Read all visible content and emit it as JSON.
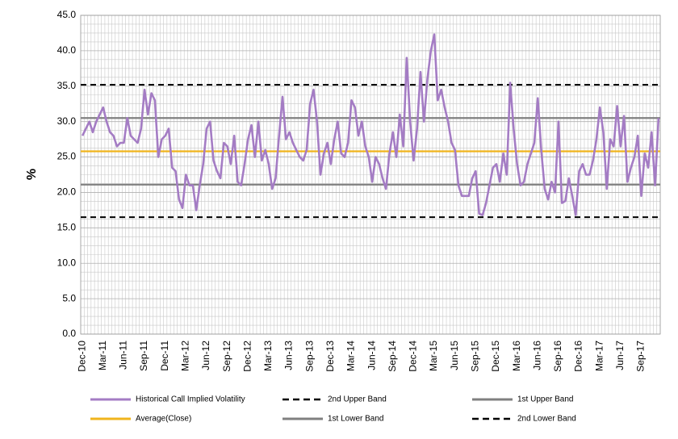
{
  "chart_data": {
    "type": "line",
    "ylabel": "%",
    "ylim": [
      0,
      45
    ],
    "yticks": [
      {
        "value": 0,
        "label": "0.0"
      },
      {
        "value": 5,
        "label": "5.0"
      },
      {
        "value": 10,
        "label": "10.0"
      },
      {
        "value": 15,
        "label": "15.0"
      },
      {
        "value": 20,
        "label": "20.0"
      },
      {
        "value": 25,
        "label": "25.0"
      },
      {
        "value": 30,
        "label": "30.0"
      },
      {
        "value": 35,
        "label": "35.0"
      },
      {
        "value": 40,
        "label": "40.0"
      },
      {
        "value": 45,
        "label": "45.0"
      }
    ],
    "grid": true,
    "categories": [
      "Dec-10",
      null,
      null,
      null,
      null,
      null,
      "Mar-11",
      null,
      null,
      null,
      null,
      null,
      "Jun-11",
      null,
      null,
      null,
      null,
      null,
      "Sep-11",
      null,
      null,
      null,
      null,
      null,
      "Dec-11",
      null,
      null,
      null,
      null,
      null,
      "Mar-12",
      null,
      null,
      null,
      null,
      null,
      "Jun-12",
      null,
      null,
      null,
      null,
      null,
      "Sep-12",
      null,
      null,
      null,
      null,
      null,
      "Dec-12",
      null,
      null,
      null,
      null,
      null,
      "Mar-13",
      null,
      null,
      null,
      null,
      null,
      "Jun-13",
      null,
      null,
      null,
      null,
      null,
      "Sep-13",
      null,
      null,
      null,
      null,
      null,
      "Dec-13",
      null,
      null,
      null,
      null,
      null,
      "Mar-14",
      null,
      null,
      null,
      null,
      null,
      "Jun-14",
      null,
      null,
      null,
      null,
      null,
      "Sep-14",
      null,
      null,
      null,
      null,
      null,
      "Dec-14",
      null,
      null,
      null,
      null,
      null,
      "Mar-15",
      null,
      null,
      null,
      null,
      null,
      "Jun-15",
      null,
      null,
      null,
      null,
      null,
      "Sep-15",
      null,
      null,
      null,
      null,
      null,
      "Dec-15",
      null,
      null,
      null,
      null,
      null,
      "Mar-16",
      null,
      null,
      null,
      null,
      null,
      "Jun-16",
      null,
      null,
      null,
      null,
      null,
      "Sep-16",
      null,
      null,
      null,
      null,
      null,
      "Dec-16",
      null,
      null,
      null,
      null,
      null,
      "Mar-17",
      null,
      null,
      null,
      null,
      null,
      "Jun-17",
      null,
      null,
      null,
      null,
      null,
      "Sep-17",
      null,
      null,
      null,
      null,
      null
    ],
    "series": [
      {
        "name": "Historical Call Implied Volatility",
        "color": "#a47cc4",
        "values": [
          28,
          29,
          30,
          28.5,
          30,
          31,
          32,
          30,
          28.5,
          28,
          26.5,
          27,
          27,
          30.5,
          28,
          27.5,
          27,
          29,
          34.5,
          31,
          34,
          33,
          25,
          27.5,
          28,
          29,
          23.5,
          23,
          19,
          17.8,
          22.5,
          21,
          21,
          17.5,
          21,
          24,
          29,
          30,
          24.5,
          23,
          22,
          27,
          26.5,
          24,
          28,
          21.5,
          21,
          24,
          27.5,
          29.5,
          25,
          30,
          24.5,
          26,
          24,
          20.5,
          22,
          28,
          33.5,
          27.5,
          28.5,
          27,
          26,
          25,
          24.5,
          26,
          32.5,
          34.5,
          30,
          22.5,
          25.5,
          27,
          24,
          27.5,
          30,
          25.5,
          25,
          27,
          33,
          32,
          28,
          30,
          26.5,
          25,
          21.5,
          25,
          24,
          22,
          20.5,
          25.5,
          28.5,
          25,
          31,
          26.5,
          39,
          30,
          24.5,
          29,
          37,
          30,
          36,
          40,
          42.3,
          33,
          34.5,
          32,
          30,
          27,
          26,
          21,
          19.5,
          19.5,
          19.5,
          22,
          23,
          17,
          16.8,
          18.5,
          21,
          23.5,
          24,
          21.5,
          25.5,
          22.5,
          35.5,
          29,
          24,
          21,
          21.5,
          24,
          25.5,
          27,
          33.3,
          26,
          20.5,
          19,
          21.5,
          20,
          30,
          18.5,
          18.8,
          22,
          19.5,
          16.8,
          23,
          24,
          22.5,
          22.5,
          24.5,
          27.5,
          32,
          28.5,
          20.5,
          27.5,
          26.5,
          32.2,
          26.5,
          30.8,
          21.5,
          23.5,
          25,
          28,
          19.5,
          25.5,
          23.5,
          28.5,
          21,
          30.5
        ]
      }
    ],
    "reference_lines": [
      {
        "name": "2nd Upper Band",
        "color": "#000000",
        "dashed": true,
        "value": 35.2
      },
      {
        "name": "1st Upper Band",
        "color": "#808080",
        "dashed": false,
        "value": 30.5
      },
      {
        "name": "Average(Close)",
        "color": "#f0b41c",
        "dashed": false,
        "value": 25.8
      },
      {
        "name": "1st Lower Band",
        "color": "#808080",
        "dashed": false,
        "value": 21.1
      },
      {
        "name": "2nd Lower Band",
        "color": "#000000",
        "dashed": true,
        "value": 16.5
      }
    ]
  }
}
